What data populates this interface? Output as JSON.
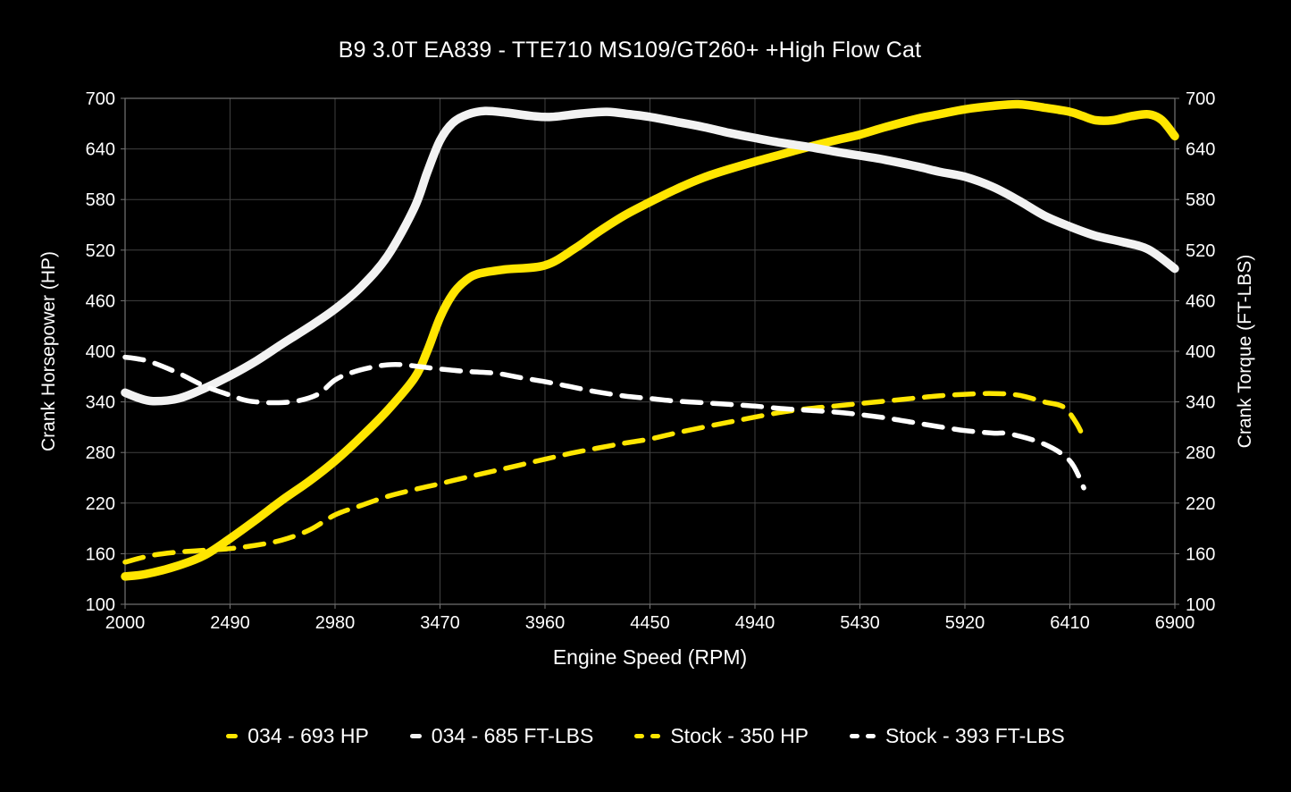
{
  "figure": {
    "background": "#000000",
    "accent_yellow": "#ffe600",
    "accent_white": "#f2f2f2"
  },
  "chart_data": {
    "type": "line",
    "title": "B9 3.0T EA839 - TTE710 MS109/GT260+ +High Flow Cat",
    "xlabel": "Engine Speed (RPM)",
    "ylabel_left": "Crank Horsepower (HP)",
    "ylabel_right": "Crank Torque (FT-LBS)",
    "xlim": [
      2000,
      6900
    ],
    "ylim": [
      100,
      700
    ],
    "x_ticks": [
      2000,
      2490,
      2980,
      3470,
      3960,
      4450,
      4940,
      5430,
      5920,
      6410,
      6900
    ],
    "y_ticks": [
      100,
      160,
      220,
      280,
      340,
      400,
      460,
      520,
      580,
      640,
      700
    ],
    "grid": true,
    "grid_color": "#414141",
    "border_color": "#757575",
    "tick_text_color": "#ffffff",
    "legend_position": "bottom-center",
    "series": [
      {
        "name": "034 - 693 HP",
        "color": "#ffe600",
        "style": "solid",
        "axis": "left",
        "peak": 693,
        "points": [
          [
            2000,
            133
          ],
          [
            2100,
            136
          ],
          [
            2250,
            146
          ],
          [
            2370,
            158
          ],
          [
            2490,
            178
          ],
          [
            2610,
            200
          ],
          [
            2730,
            223
          ],
          [
            2860,
            246
          ],
          [
            2980,
            270
          ],
          [
            3100,
            298
          ],
          [
            3225,
            330
          ],
          [
            3350,
            368
          ],
          [
            3410,
            400
          ],
          [
            3470,
            440
          ],
          [
            3530,
            468
          ],
          [
            3590,
            484
          ],
          [
            3650,
            492
          ],
          [
            3770,
            497
          ],
          [
            3960,
            502
          ],
          [
            4100,
            522
          ],
          [
            4200,
            540
          ],
          [
            4330,
            561
          ],
          [
            4450,
            577
          ],
          [
            4570,
            592
          ],
          [
            4700,
            606
          ],
          [
            4820,
            616
          ],
          [
            4940,
            625
          ],
          [
            5070,
            634
          ],
          [
            5200,
            643
          ],
          [
            5310,
            650
          ],
          [
            5430,
            657
          ],
          [
            5550,
            666
          ],
          [
            5700,
            676
          ],
          [
            5800,
            681
          ],
          [
            5920,
            687
          ],
          [
            6050,
            691
          ],
          [
            6170,
            693
          ],
          [
            6290,
            689
          ],
          [
            6410,
            684
          ],
          [
            6470,
            679
          ],
          [
            6530,
            674
          ],
          [
            6610,
            674
          ],
          [
            6700,
            679
          ],
          [
            6780,
            681
          ],
          [
            6840,
            674
          ],
          [
            6900,
            655
          ]
        ]
      },
      {
        "name": "034 - 685 FT-LBS",
        "color": "#f2f2f2",
        "style": "solid",
        "axis": "right",
        "peak": 685,
        "points": [
          [
            2000,
            351
          ],
          [
            2060,
            345
          ],
          [
            2130,
            341
          ],
          [
            2250,
            344
          ],
          [
            2370,
            356
          ],
          [
            2490,
            371
          ],
          [
            2615,
            389
          ],
          [
            2735,
            409
          ],
          [
            2860,
            429
          ],
          [
            2980,
            450
          ],
          [
            3100,
            476
          ],
          [
            3225,
            513
          ],
          [
            3350,
            570
          ],
          [
            3410,
            612
          ],
          [
            3470,
            650
          ],
          [
            3530,
            671
          ],
          [
            3600,
            681
          ],
          [
            3680,
            685
          ],
          [
            3780,
            683
          ],
          [
            3900,
            679
          ],
          [
            3990,
            678
          ],
          [
            4130,
            682
          ],
          [
            4250,
            684
          ],
          [
            4360,
            681
          ],
          [
            4450,
            678
          ],
          [
            4575,
            672
          ],
          [
            4700,
            666
          ],
          [
            4820,
            659
          ],
          [
            4940,
            653
          ],
          [
            5070,
            647
          ],
          [
            5200,
            642
          ],
          [
            5310,
            637
          ],
          [
            5430,
            632
          ],
          [
            5550,
            627
          ],
          [
            5700,
            619
          ],
          [
            5800,
            613
          ],
          [
            5920,
            607
          ],
          [
            6050,
            595
          ],
          [
            6170,
            579
          ],
          [
            6290,
            561
          ],
          [
            6410,
            548
          ],
          [
            6530,
            537
          ],
          [
            6650,
            530
          ],
          [
            6775,
            521
          ],
          [
            6900,
            498
          ]
        ]
      },
      {
        "name": "Stock - 350 HP",
        "color": "#ffe600",
        "style": "dashed",
        "axis": "left",
        "peak": 350,
        "points": [
          [
            2000,
            150
          ],
          [
            2125,
            158
          ],
          [
            2250,
            162
          ],
          [
            2370,
            164
          ],
          [
            2490,
            166
          ],
          [
            2610,
            170
          ],
          [
            2730,
            176
          ],
          [
            2860,
            188
          ],
          [
            2980,
            206
          ],
          [
            3100,
            217
          ],
          [
            3225,
            228
          ],
          [
            3350,
            236
          ],
          [
            3470,
            243
          ],
          [
            3600,
            251
          ],
          [
            3720,
            258
          ],
          [
            3840,
            265
          ],
          [
            3960,
            272
          ],
          [
            4080,
            279
          ],
          [
            4200,
            285
          ],
          [
            4330,
            291
          ],
          [
            4450,
            296
          ],
          [
            4570,
            303
          ],
          [
            4700,
            310
          ],
          [
            4820,
            316
          ],
          [
            4940,
            322
          ],
          [
            5070,
            328
          ],
          [
            5190,
            332
          ],
          [
            5310,
            335
          ],
          [
            5430,
            338
          ],
          [
            5550,
            341
          ],
          [
            5670,
            344
          ],
          [
            5790,
            347
          ],
          [
            5920,
            349
          ],
          [
            6050,
            350
          ],
          [
            6170,
            348
          ],
          [
            6290,
            340
          ],
          [
            6380,
            334
          ],
          [
            6440,
            315
          ],
          [
            6475,
            297
          ]
        ]
      },
      {
        "name": "Stock - 393 FT-LBS",
        "color": "#ffffff",
        "style": "dashed",
        "axis": "right",
        "peak": 393,
        "points": [
          [
            2000,
            393
          ],
          [
            2060,
            391
          ],
          [
            2125,
            387
          ],
          [
            2250,
            374
          ],
          [
            2370,
            359
          ],
          [
            2490,
            348
          ],
          [
            2560,
            342
          ],
          [
            2615,
            340
          ],
          [
            2700,
            339
          ],
          [
            2800,
            341
          ],
          [
            2900,
            349
          ],
          [
            2980,
            366
          ],
          [
            3060,
            375
          ],
          [
            3150,
            381
          ],
          [
            3225,
            384
          ],
          [
            3300,
            384
          ],
          [
            3400,
            381
          ],
          [
            3470,
            379
          ],
          [
            3600,
            376
          ],
          [
            3730,
            374
          ],
          [
            3840,
            369
          ],
          [
            3960,
            364
          ],
          [
            4080,
            358
          ],
          [
            4200,
            352
          ],
          [
            4330,
            347
          ],
          [
            4450,
            344
          ],
          [
            4570,
            341
          ],
          [
            4700,
            339
          ],
          [
            4820,
            337
          ],
          [
            4940,
            335
          ],
          [
            5070,
            332
          ],
          [
            5190,
            330
          ],
          [
            5310,
            328
          ],
          [
            5430,
            325
          ],
          [
            5550,
            321
          ],
          [
            5670,
            316
          ],
          [
            5790,
            311
          ],
          [
            5920,
            306
          ],
          [
            6050,
            303
          ],
          [
            6130,
            302
          ],
          [
            6290,
            290
          ],
          [
            6410,
            270
          ],
          [
            6475,
            238
          ]
        ]
      }
    ]
  }
}
